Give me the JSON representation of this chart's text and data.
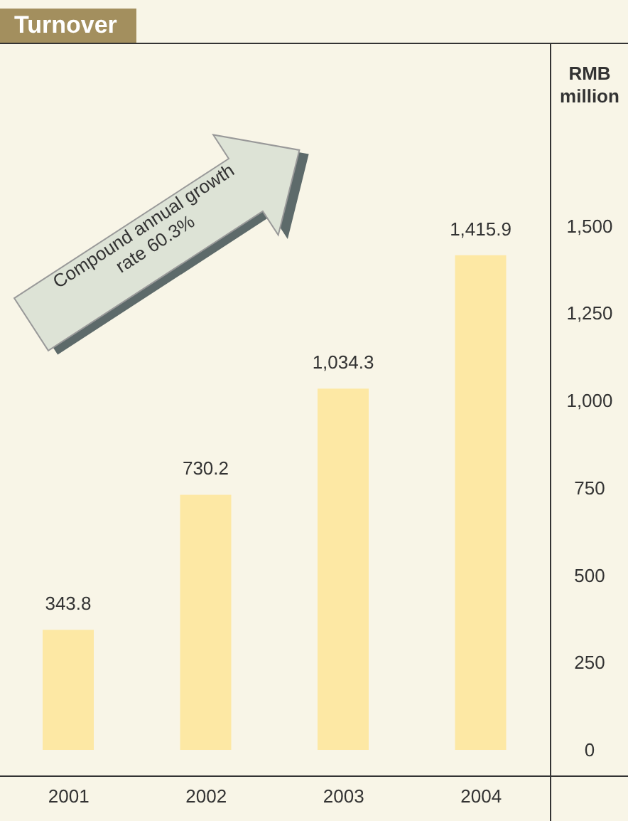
{
  "chart_data": {
    "type": "bar",
    "title": "Turnover",
    "ylabel": "RMB million",
    "categories": [
      "2001",
      "2002",
      "2003",
      "2004"
    ],
    "values": [
      343.8,
      730.2,
      1034.3,
      1415.9
    ],
    "color": "#fde8a4",
    "value_labels": [
      "343.8",
      "730.2",
      "1,034.3",
      "1,415.9"
    ],
    "ylim": [
      0,
      2000
    ],
    "yticks": [
      0,
      250,
      500,
      750,
      {
        "value": 1000,
        "label": "1,000"
      },
      {
        "value": 1250,
        "label": "1,250"
      },
      {
        "value": 1500,
        "label": "1,500"
      }
    ],
    "annotations": [
      "Compound annual growth rate 60.3%"
    ]
  }
}
